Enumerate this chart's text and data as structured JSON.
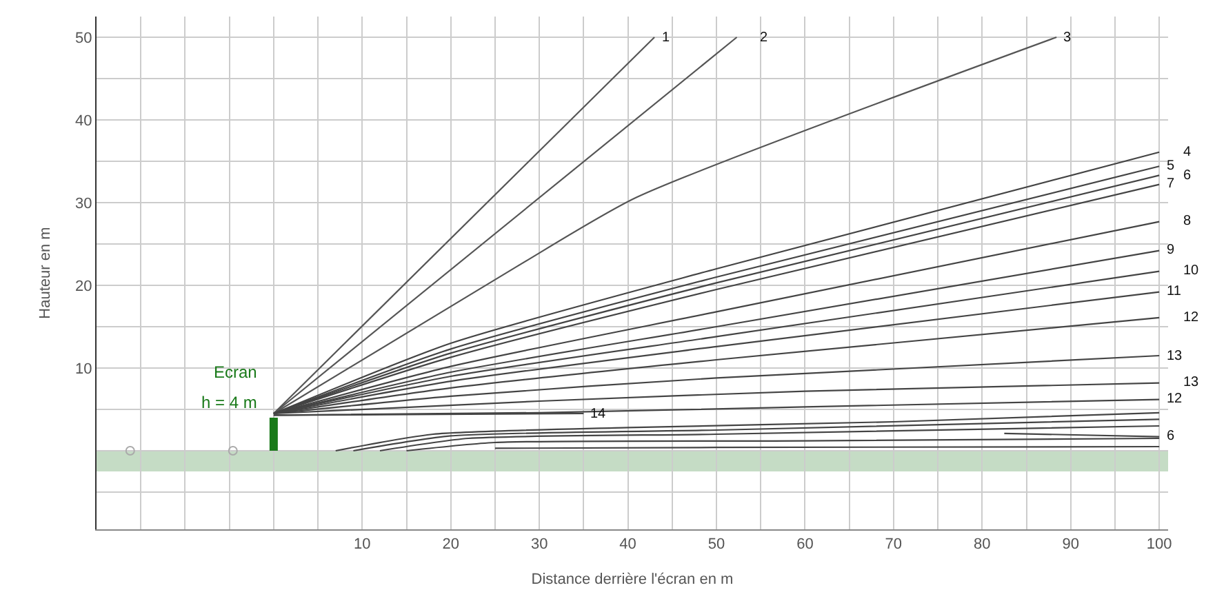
{
  "chart_data": {
    "type": "line",
    "xlabel": "Distance derrière l'écran en m",
    "ylabel": "Hauteur en m",
    "xlim": [
      -20,
      101
    ],
    "ylim": [
      -9.5,
      52.5
    ],
    "xticks": [
      {
        "value": -20,
        "label": null
      },
      {
        "value": -15,
        "label": null
      },
      {
        "value": -10,
        "label": null
      },
      {
        "value": -5,
        "label": null
      },
      {
        "value": 0,
        "label": null
      },
      {
        "value": 5,
        "label": null
      },
      10,
      {
        "value": 15,
        "label": null
      },
      20,
      {
        "value": 25,
        "label": null
      },
      30,
      {
        "value": 35,
        "label": null
      },
      40,
      {
        "value": 45,
        "label": null
      },
      50,
      {
        "value": 55,
        "label": null
      },
      60,
      {
        "value": 65,
        "label": null
      },
      70,
      {
        "value": 75,
        "label": null
      },
      80,
      {
        "value": 85,
        "label": null
      },
      90,
      {
        "value": 95,
        "label": null
      },
      100
    ],
    "yticks": [
      {
        "value": -5,
        "label": null
      },
      {
        "value": 0,
        "label": null
      },
      {
        "value": 5,
        "label": null
      },
      10,
      {
        "value": 15,
        "label": null
      },
      20,
      {
        "value": 25,
        "label": null
      },
      30,
      {
        "value": 35,
        "label": null
      },
      40,
      {
        "value": 45,
        "label": null
      },
      50
    ],
    "grid": true,
    "legend": false,
    "line_style": "solid",
    "marker": "none",
    "bands": [
      {
        "axis": "y",
        "from": -2.5,
        "to": 0,
        "label": null,
        "color": "#7fb27f"
      }
    ],
    "series": [
      {
        "name": "1",
        "color": "#555555",
        "x": [
          0,
          43
        ],
        "values": [
          4.5,
          50
        ]
      },
      {
        "name": "2",
        "color": "#555555",
        "x": [
          0,
          52.3
        ],
        "values": [
          4.5,
          50
        ]
      },
      {
        "name": "3",
        "color": "#555555",
        "x": [
          0,
          27.5,
          40.9,
          88.4
        ],
        "values": [
          4.5,
          22.3,
          30.6,
          50
        ]
      },
      {
        "name": "4",
        "color": "#444444",
        "x": [
          0,
          20,
          50,
          100
        ],
        "values": [
          4.5,
          13,
          22,
          36.1
        ]
      },
      {
        "name": "5",
        "color": "#444444",
        "x": [
          0,
          20,
          50,
          100
        ],
        "values": [
          4.5,
          12.3,
          21,
          34.4
        ]
      },
      {
        "name": "6",
        "color": "#444444",
        "x": [
          0,
          20,
          50,
          100
        ],
        "values": [
          4.5,
          11.8,
          20.3,
          33.3
        ]
      },
      {
        "name": "7",
        "color": "#444444",
        "x": [
          0,
          20,
          50,
          100
        ],
        "values": [
          4.5,
          11.3,
          19.5,
          32.2
        ]
      },
      {
        "name": "8",
        "color": "#444444",
        "x": [
          0,
          20,
          50,
          100
        ],
        "values": [
          4.5,
          10.2,
          16.8,
          27.7
        ]
      },
      {
        "name": "9",
        "color": "#444444",
        "x": [
          0,
          20,
          50,
          100
        ],
        "values": [
          4.5,
          9.5,
          15,
          24.2
        ]
      },
      {
        "name": "10",
        "color": "#444444",
        "x": [
          0,
          20,
          50,
          100
        ],
        "values": [
          4.5,
          9,
          13.8,
          21.7
        ]
      },
      {
        "name": "11",
        "color": "#444444",
        "x": [
          0,
          20,
          50,
          100
        ],
        "values": [
          4.5,
          8.4,
          12.6,
          19.2
        ]
      },
      {
        "name": "12",
        "color": "#444444",
        "x": [
          0,
          20,
          50,
          100
        ],
        "values": [
          4.5,
          7.6,
          11,
          16.1
        ]
      },
      {
        "name": "13",
        "color": "#444444",
        "x": [
          0,
          20,
          50,
          100
        ],
        "values": [
          4.5,
          6.6,
          8.8,
          11.5
        ]
      },
      {
        "name": "13",
        "color": "#444444",
        "x": [
          0,
          30,
          60,
          100
        ],
        "values": [
          4.5,
          6,
          7.2,
          8.2
        ]
      },
      {
        "name": "12",
        "color": "#444444",
        "x": [
          0,
          30,
          60,
          100
        ],
        "values": [
          4.3,
          4.6,
          5.3,
          6.2
        ]
      },
      {
        "name": "14",
        "color": "#444444",
        "x": [
          0,
          35
        ],
        "values": [
          4.3,
          4.5
        ]
      },
      {
        "color": "#444444",
        "x": [
          7,
          18,
          40,
          70,
          100
        ],
        "values": [
          0,
          2,
          2.8,
          3.5,
          4.6
        ]
      },
      {
        "color": "#444444",
        "x": [
          9,
          20,
          50,
          100
        ],
        "values": [
          0,
          1.8,
          2.5,
          3.8
        ]
      },
      {
        "color": "#444444",
        "x": [
          12,
          22,
          50,
          100
        ],
        "values": [
          0,
          1.5,
          2,
          3
        ]
      },
      {
        "color": "#444444",
        "x": [
          15,
          25,
          60,
          100
        ],
        "values": [
          0,
          1,
          1.2,
          1.5
        ]
      },
      {
        "color": "#444444",
        "x": [
          25,
          50,
          100
        ],
        "values": [
          0.3,
          0.4,
          0.5
        ]
      },
      {
        "name": "6",
        "color": "#444444",
        "x": [
          82.5,
          100
        ],
        "values": [
          2.1,
          1.7
        ]
      },
      {
        "color": "#1a7a1a",
        "x": [
          0,
          0
        ],
        "values": [
          0,
          4
        ]
      },
      {
        "type": "scatter",
        "color": "#aaaaaa",
        "marker": "circle",
        "x": [
          -16.2,
          -4.6
        ],
        "values": [
          0,
          0
        ]
      }
    ],
    "annotations": [
      "Ecran",
      "h = 4 m"
    ]
  }
}
